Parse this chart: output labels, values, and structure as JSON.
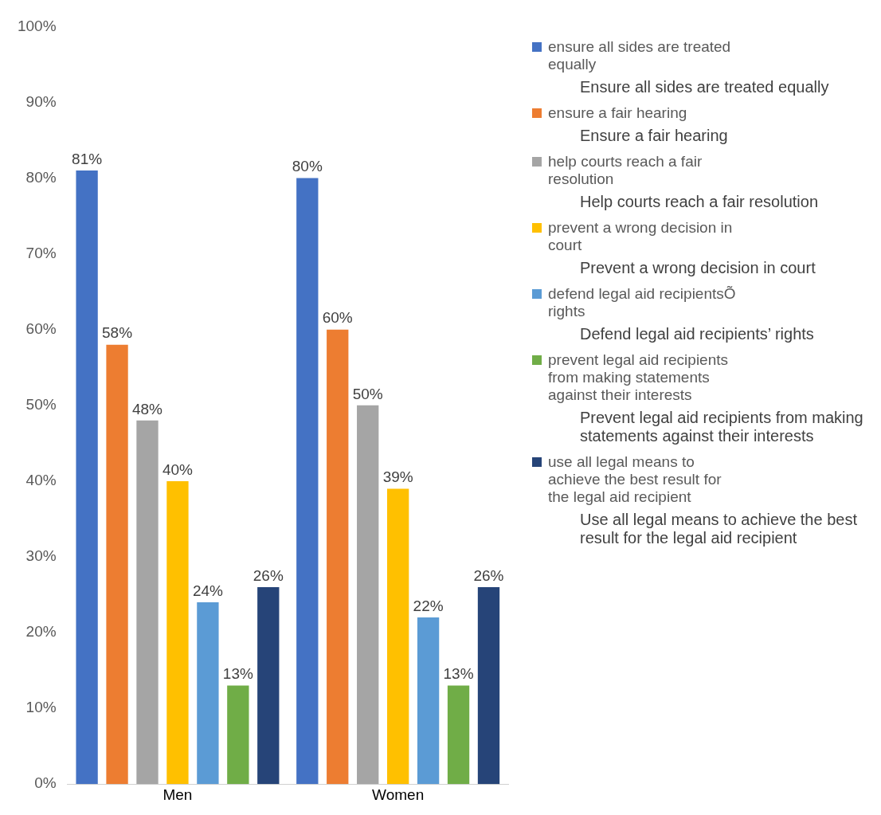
{
  "chart_data": {
    "type": "bar",
    "categories": [
      "Men",
      "Women"
    ],
    "series": [
      {
        "name": "ensure all sides are treated equally",
        "color": "#4472c4",
        "values": [
          81,
          80
        ],
        "value_labels": [
          "81%",
          "80%"
        ]
      },
      {
        "name": "ensure a fair hearing",
        "color": "#ed7d31",
        "values": [
          58,
          60
        ],
        "value_labels": [
          "58%",
          "60%"
        ]
      },
      {
        "name": "help courts reach a fair resolution",
        "color": "#a5a5a5",
        "values": [
          48,
          50
        ],
        "value_labels": [
          "48%",
          "50%"
        ]
      },
      {
        "name": "prevent a wrong decision in court",
        "color": "#ffc000",
        "values": [
          40,
          39
        ],
        "value_labels": [
          "40%",
          "39%"
        ]
      },
      {
        "name": "defend legal aid recipientsÕ rights",
        "color": "#5b9bd5",
        "values": [
          24,
          22
        ],
        "value_labels": [
          "24%",
          "22%"
        ]
      },
      {
        "name": "prevent legal aid recipients from making statements against their interests",
        "color": "#70ad47",
        "values": [
          13,
          13
        ],
        "value_labels": [
          "13%",
          "13%"
        ]
      },
      {
        "name": "use all legal means to achieve the best result for the legal aid recipient",
        "color": "#264478",
        "values": [
          26,
          26
        ],
        "value_labels": [
          "26%",
          "26%"
        ]
      }
    ],
    "ylim": [
      0,
      100
    ],
    "yticks": [
      {
        "value": 0,
        "label": "0%"
      },
      {
        "value": 10,
        "label": "10%"
      },
      {
        "value": 20,
        "label": "20%"
      },
      {
        "value": 30,
        "label": "30%"
      },
      {
        "value": 40,
        "label": "40%"
      },
      {
        "value": 50,
        "label": "50%"
      },
      {
        "value": 60,
        "label": "60%"
      },
      {
        "value": 70,
        "label": "70%"
      },
      {
        "value": 80,
        "label": "80%"
      },
      {
        "value": 90,
        "label": "90%"
      },
      {
        "value": 100,
        "label": "100%"
      }
    ],
    "grid": false,
    "legend": "right",
    "annotations": [
      "Ensure all sides are treated equally",
      "Ensure a fair hearing",
      "Help courts reach a fair resolution",
      "Prevent a wrong decision in court",
      "Defend legal aid recipients’ rights",
      "Prevent legal aid recipients from making statements against their interests",
      "Use all legal means to achieve the best result for the legal aid recipient"
    ]
  }
}
